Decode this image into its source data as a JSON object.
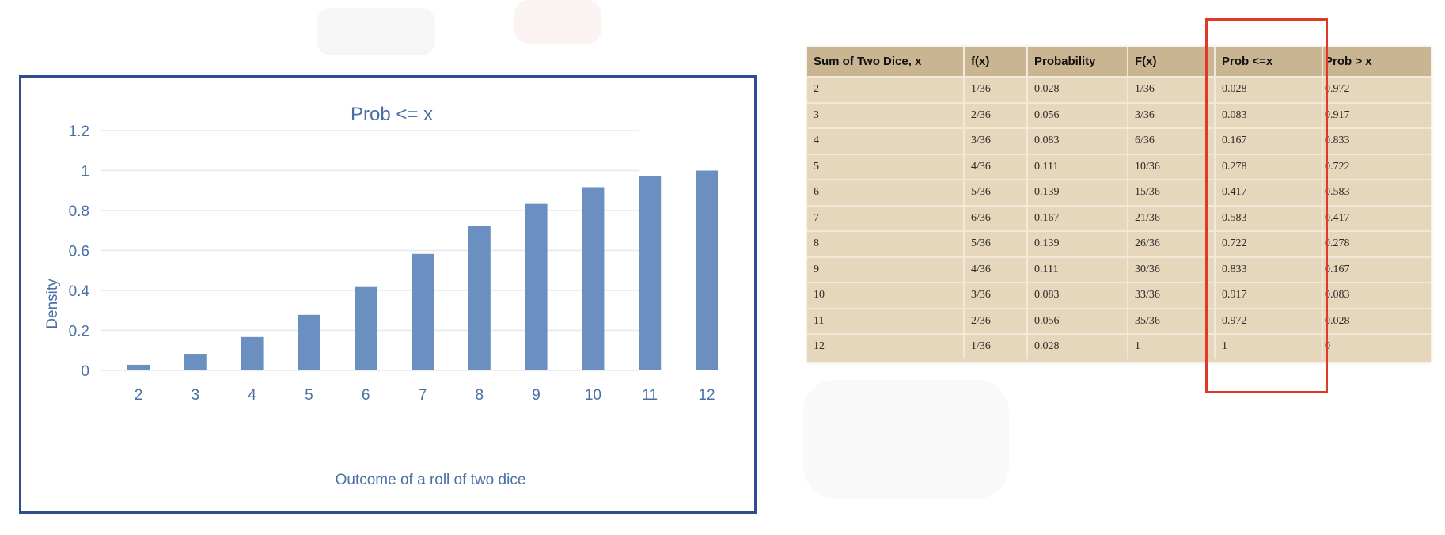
{
  "chart_data": {
    "type": "bar",
    "title": "Prob <= x",
    "xlabel": "Outcome of a roll of two dice",
    "ylabel": "Density",
    "categories": [
      "2",
      "3",
      "4",
      "5",
      "6",
      "7",
      "8",
      "9",
      "10",
      "11",
      "12"
    ],
    "values": [
      0.028,
      0.083,
      0.167,
      0.278,
      0.417,
      0.583,
      0.722,
      0.833,
      0.917,
      0.972,
      1
    ],
    "ylim": [
      0,
      1.2
    ],
    "yticks": [
      "0",
      "0.2",
      "0.4",
      "0.6",
      "0.8",
      "1",
      "1.2"
    ],
    "grid": true,
    "bar_color": "#6a8fc0"
  },
  "table": {
    "headers": [
      "Sum of Two Dice, x",
      "f(x)",
      "Probability",
      "F(x)",
      "Prob <=x",
      "Prob > x"
    ],
    "rows": [
      [
        "2",
        "1/36",
        "0.028",
        "1/36",
        "0.028",
        "0.972"
      ],
      [
        "3",
        "2/36",
        "0.056",
        "3/36",
        "0.083",
        "0.917"
      ],
      [
        "4",
        "3/36",
        "0.083",
        "6/36",
        "0.167",
        "0.833"
      ],
      [
        "5",
        "4/36",
        "0.111",
        "10/36",
        "0.278",
        "0.722"
      ],
      [
        "6",
        "5/36",
        "0.139",
        "15/36",
        "0.417",
        "0.583"
      ],
      [
        "7",
        "6/36",
        "0.167",
        "21/36",
        "0.583",
        "0.417"
      ],
      [
        "8",
        "5/36",
        "0.139",
        "26/36",
        "0.722",
        "0.278"
      ],
      [
        "9",
        "4/36",
        "0.111",
        "30/36",
        "0.833",
        "0.167"
      ],
      [
        "10",
        "3/36",
        "0.083",
        "33/36",
        "0.917",
        "0.083"
      ],
      [
        "11",
        "2/36",
        "0.056",
        "35/36",
        "0.972",
        "0.028"
      ],
      [
        "12",
        "1/36",
        "0.028",
        "1",
        "1",
        "0"
      ]
    ]
  },
  "highlight_color": "#e03a26"
}
